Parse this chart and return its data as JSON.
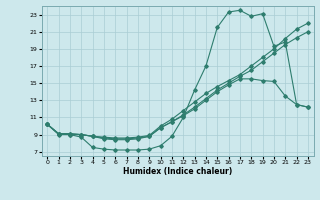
{
  "bg_color": "#cde8ec",
  "line_color": "#2e7d6e",
  "grid_color": "#aacdd4",
  "xlabel": "Humidex (Indice chaleur)",
  "xlim": [
    -0.5,
    23.5
  ],
  "ylim": [
    6.5,
    24.0
  ],
  "xticks": [
    0,
    1,
    2,
    3,
    4,
    5,
    6,
    7,
    8,
    9,
    10,
    11,
    12,
    13,
    14,
    15,
    16,
    17,
    18,
    19,
    20,
    21,
    22,
    23
  ],
  "yticks": [
    7,
    9,
    11,
    13,
    15,
    17,
    19,
    21,
    23
  ],
  "line1_x": [
    0,
    1,
    2,
    3,
    4,
    5,
    6,
    7,
    8,
    9,
    10,
    11,
    12,
    13,
    14,
    15,
    16,
    17,
    18,
    19,
    20,
    21,
    22,
    23
  ],
  "line1_y": [
    10.2,
    9.1,
    9.0,
    8.7,
    7.5,
    7.3,
    7.2,
    7.2,
    7.2,
    7.3,
    7.7,
    8.8,
    11.0,
    14.2,
    17.0,
    21.5,
    23.3,
    23.5,
    22.8,
    23.1,
    19.3,
    19.8,
    12.5,
    12.2
  ],
  "line2_x": [
    0,
    1,
    2,
    3,
    4,
    5,
    6,
    7,
    8,
    9,
    10,
    11,
    12,
    13,
    14,
    15,
    16,
    17,
    18,
    19,
    20,
    21,
    22,
    23
  ],
  "line2_y": [
    10.2,
    9.0,
    9.0,
    9.0,
    8.8,
    8.5,
    8.4,
    8.4,
    8.5,
    8.8,
    9.8,
    10.5,
    11.2,
    12.0,
    13.0,
    14.0,
    14.8,
    15.5,
    15.5,
    15.3,
    15.2,
    13.5,
    12.5,
    12.2
  ],
  "line3_x": [
    0,
    1,
    2,
    3,
    4,
    5,
    6,
    7,
    8,
    9,
    10,
    11,
    12,
    13,
    14,
    15,
    16,
    17,
    18,
    19,
    20,
    21,
    22,
    23
  ],
  "line3_y": [
    10.2,
    9.1,
    9.1,
    9.0,
    8.8,
    8.6,
    8.5,
    8.5,
    8.6,
    8.8,
    9.8,
    10.5,
    11.3,
    12.2,
    13.2,
    14.2,
    15.0,
    15.8,
    16.5,
    17.5,
    18.5,
    19.5,
    20.3,
    21.0
  ],
  "line4_x": [
    0,
    1,
    2,
    3,
    4,
    5,
    6,
    7,
    8,
    9,
    10,
    11,
    12,
    13,
    14,
    15,
    16,
    17,
    18,
    19,
    20,
    21,
    22,
    23
  ],
  "line4_y": [
    10.2,
    9.1,
    9.1,
    9.0,
    8.8,
    8.7,
    8.6,
    8.6,
    8.7,
    8.9,
    10.0,
    10.8,
    11.8,
    12.8,
    13.8,
    14.6,
    15.3,
    16.0,
    17.0,
    18.0,
    19.0,
    20.2,
    21.3,
    22.0
  ]
}
